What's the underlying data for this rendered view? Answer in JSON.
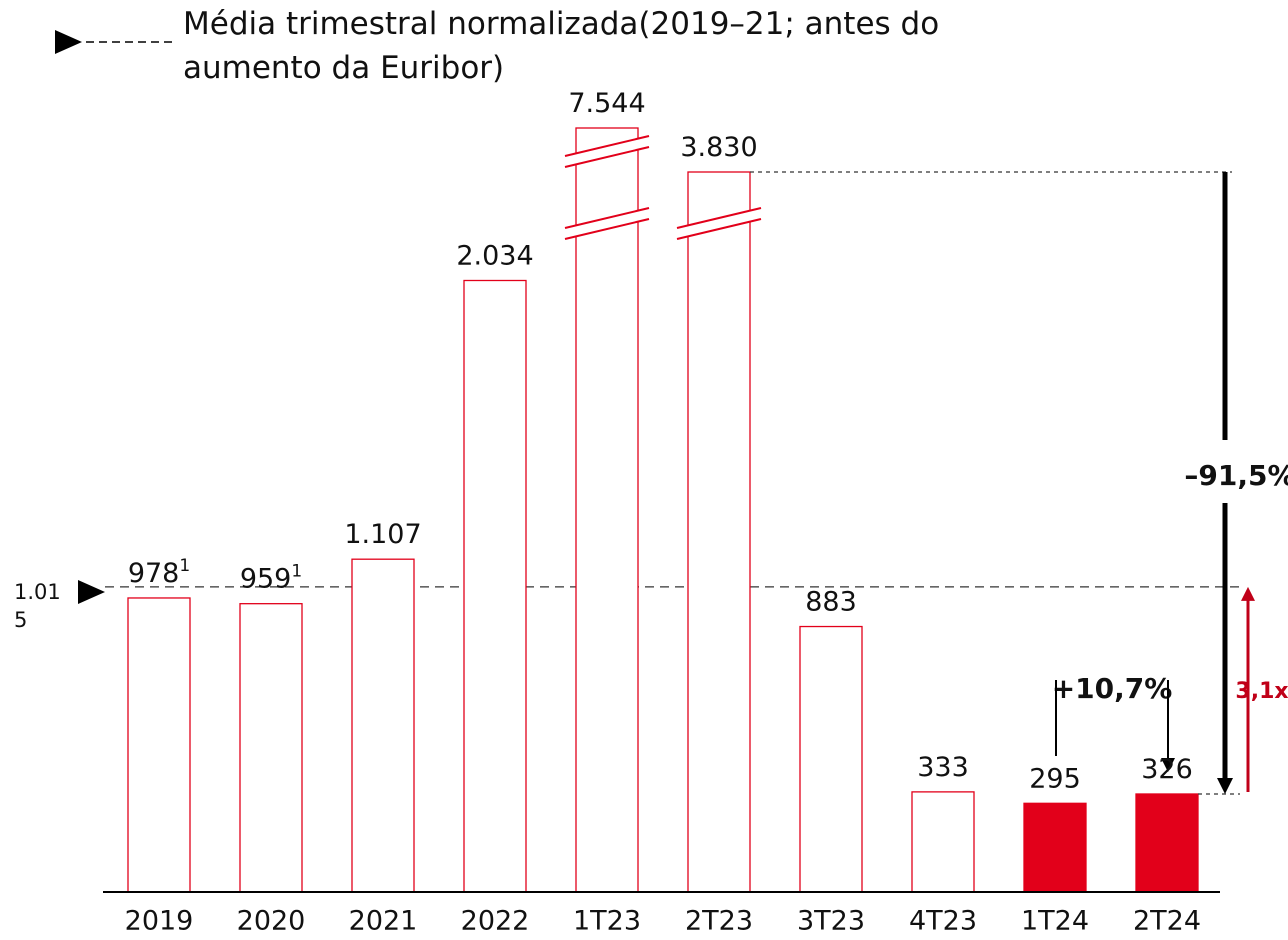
{
  "chart_data": {
    "type": "bar",
    "legend": "Média trimestral normalizada(2019–21; antes do aumento da Euribor)",
    "categories": [
      "2019",
      "2020",
      "2021",
      "2022",
      "1T23",
      "2T23",
      "3T23",
      "4T23",
      "1T24",
      "2T24"
    ],
    "values": [
      978,
      959,
      1107,
      2034,
      7544,
      3830,
      883,
      333,
      295,
      326
    ],
    "value_labels": [
      "978",
      "959",
      "1.107",
      "2.034",
      "7.544",
      "3.830",
      "883",
      "333",
      "295",
      "326"
    ],
    "label_notes": [
      "1",
      "1",
      null,
      null,
      null,
      null,
      null,
      null,
      null,
      null
    ],
    "color": "#e2001a",
    "fills": [
      null,
      null,
      null,
      null,
      null,
      null,
      null,
      null,
      "#e2001a",
      "#e2001a"
    ],
    "ylim": [
      0,
      2967
    ],
    "axis_break": true,
    "reference_line": {
      "value": 1015,
      "label": "1.015"
    },
    "annotations": [
      "–91,5%",
      "3,1x",
      "+10,7%"
    ]
  }
}
